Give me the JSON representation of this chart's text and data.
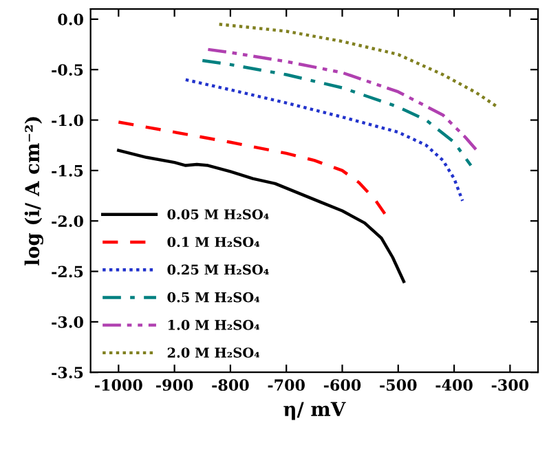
{
  "chart_data": {
    "type": "line",
    "xlabel": "η/ mV",
    "ylabel": "log (i/ A cm⁻²)",
    "xlim": [
      -1050,
      -250
    ],
    "ylim": [
      -3.5,
      0.1
    ],
    "xticks": [
      {
        "value": -1000,
        "label": "-1000"
      },
      {
        "value": -900,
        "label": "-900"
      },
      {
        "value": -800,
        "label": "-800"
      },
      {
        "value": -700,
        "label": "-700"
      },
      {
        "value": -600,
        "label": "-600"
      },
      {
        "value": -500,
        "label": "-500"
      },
      {
        "value": -400,
        "label": "-400"
      },
      {
        "value": -300,
        "label": "-300"
      }
    ],
    "yticks": [
      {
        "value": 0,
        "label": "0.0"
      },
      {
        "value": -0.5,
        "label": "-0.5"
      },
      {
        "value": -1,
        "label": "-1.0"
      },
      {
        "value": -1.5,
        "label": "-1.5"
      },
      {
        "value": -2,
        "label": "-2.0"
      },
      {
        "value": -2.5,
        "label": "-2.5"
      },
      {
        "value": -3,
        "label": "-3.0"
      },
      {
        "value": -3.5,
        "label": "-3.5"
      }
    ],
    "grid": false,
    "legend": "bottom left",
    "marker": "none",
    "series": [
      {
        "name": "0.05 M H₂SO₄",
        "color": "#000000",
        "line_style": "solid",
        "x": [
          -1000,
          -950,
          -900,
          -880,
          -860,
          -840,
          -800,
          -760,
          -720,
          -680,
          -640,
          -600,
          -560,
          -530,
          -510,
          -490
        ],
        "values": [
          -1.3,
          -1.37,
          -1.42,
          -1.45,
          -1.44,
          -1.45,
          -1.51,
          -1.58,
          -1.63,
          -1.72,
          -1.81,
          -1.9,
          -2.02,
          -2.17,
          -2.36,
          -2.6
        ]
      },
      {
        "name": "0.1 M H₂SO₄",
        "color": "#ff0000",
        "line_style": "dashed",
        "x": [
          -1000,
          -900,
          -800,
          -700,
          -650,
          -600,
          -570,
          -540,
          -520
        ],
        "values": [
          -1.02,
          -1.12,
          -1.22,
          -1.33,
          -1.4,
          -1.5,
          -1.62,
          -1.8,
          -1.96
        ]
      },
      {
        "name": "0.25 M H₂SO₄",
        "color": "#2233cc",
        "line_style": "dotted",
        "x": [
          -880,
          -800,
          -700,
          -600,
          -500,
          -450,
          -420,
          -400,
          -385
        ],
        "values": [
          -0.6,
          -0.7,
          -0.83,
          -0.97,
          -1.12,
          -1.25,
          -1.4,
          -1.58,
          -1.8
        ]
      },
      {
        "name": "0.5 M H₂SO₄",
        "color": "#008080",
        "line_style": "dashdot",
        "x": [
          -850,
          -800,
          -700,
          -600,
          -500,
          -450,
          -400,
          -370
        ],
        "values": [
          -0.41,
          -0.45,
          -0.55,
          -0.68,
          -0.87,
          -1.0,
          -1.22,
          -1.45
        ]
      },
      {
        "name": "1.0 M H₂SO₄",
        "color": "#b040b0",
        "line_style": "dashdotdot",
        "x": [
          -840,
          -800,
          -700,
          -600,
          -500,
          -420,
          -380,
          -355
        ],
        "values": [
          -0.3,
          -0.33,
          -0.42,
          -0.53,
          -0.72,
          -0.95,
          -1.17,
          -1.33
        ]
      },
      {
        "name": "2.0 M H₂SO₄",
        "color": "#808020",
        "line_style": "dotted",
        "x": [
          -820,
          -700,
          -600,
          -500,
          -420,
          -360,
          -320
        ],
        "values": [
          -0.05,
          -0.12,
          -0.22,
          -0.35,
          -0.55,
          -0.73,
          -0.88
        ]
      }
    ]
  }
}
